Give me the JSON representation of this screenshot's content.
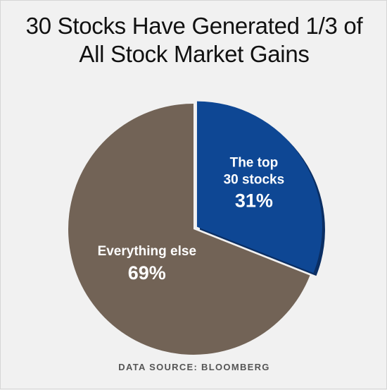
{
  "chart_data": {
    "type": "pie",
    "title": [
      "30 Stocks Have Generated 1/3 of",
      "All Stock Market Gains"
    ],
    "slices": [
      {
        "label": [
          "The top",
          "30 stocks"
        ],
        "value": 31,
        "value_label": "31%",
        "color": "#0e4794",
        "shadow_color": "#0a2e63",
        "exploded": true
      },
      {
        "label": [
          "Everything else"
        ],
        "value": 69,
        "value_label": "69%",
        "color": "#726356"
      }
    ],
    "source": "DATA SOURCE: BLOOMBERG"
  }
}
